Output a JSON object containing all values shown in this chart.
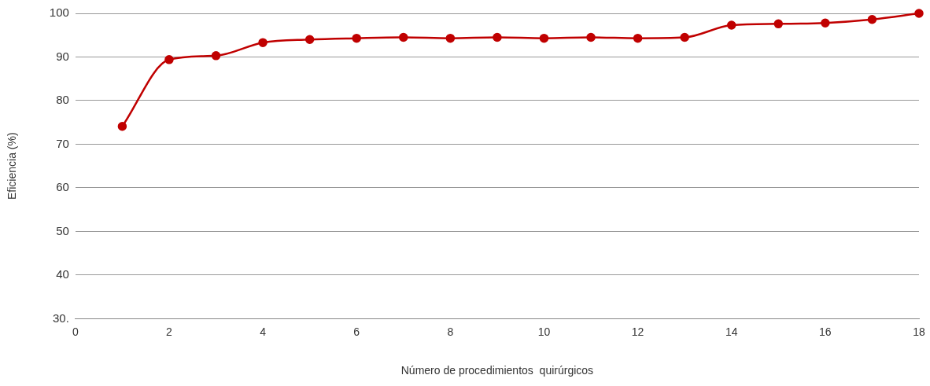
{
  "chart_data": {
    "type": "line",
    "xlabel": "Número de procedimientos  quirúrgicos",
    "ylabel": "Eficiencia (%)",
    "x": [
      1,
      2,
      3,
      4,
      5,
      6,
      7,
      8,
      9,
      10,
      11,
      12,
      13,
      14,
      15,
      16,
      17,
      18
    ],
    "series": [
      {
        "color": "#c00000",
        "values": [
          74.1,
          89.4,
          90.3,
          93.3,
          94.0,
          94.3,
          94.5,
          94.3,
          94.5,
          94.3,
          94.5,
          94.3,
          94.5,
          97.3,
          97.6,
          97.8,
          98.6,
          100
        ]
      }
    ],
    "xlim": [
      0,
      18
    ],
    "xticks": [
      0,
      2,
      4,
      6,
      8,
      10,
      12,
      14,
      16,
      18
    ],
    "ylim": [
      30,
      100
    ],
    "yticks": [
      {
        "value": 30,
        "label": "30."
      },
      40,
      50,
      60,
      70,
      80,
      90,
      100
    ],
    "grid": "y",
    "legend": false,
    "marker": "circle",
    "line_style": "solid"
  }
}
